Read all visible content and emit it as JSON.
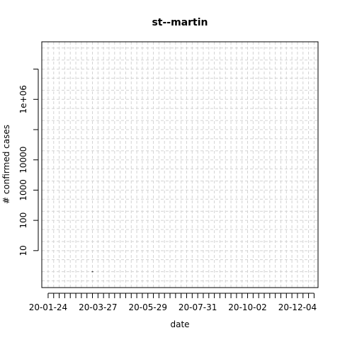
{
  "chart_data": {
    "type": "scatter",
    "title": "st--martin",
    "xlabel": "date",
    "ylabel": "# confirmed cases",
    "x_tick_labels": [
      "20-01-24",
      "20-03-27",
      "20-05-29",
      "20-07-31",
      "20-10-02",
      "20-12-04"
    ],
    "x_tick_dates": [
      "2020-01-24",
      "2020-03-27",
      "2020-05-29",
      "2020-07-31",
      "2020-10-02",
      "2020-12-04"
    ],
    "xlim": [
      "2020-01-16",
      "2020-12-30"
    ],
    "y_scale": "log10",
    "ylim": [
      0.6,
      80000000
    ],
    "y_ticks": [
      {
        "value": 10,
        "label": "10"
      },
      {
        "value": 100,
        "label": "100"
      },
      {
        "value": 1000,
        "label": "1000"
      },
      {
        "value": 10000,
        "label": "10000"
      },
      {
        "value": 100000,
        "label": ""
      },
      {
        "value": 1000000,
        "label": "1e+06"
      },
      {
        "value": 10000000,
        "label": ""
      }
    ],
    "grid": true,
    "series": [
      {
        "x": [
          "2020-03-20"
        ],
        "y": [
          2
        ]
      }
    ],
    "colors": {
      "points": "#000000",
      "grid": "#d3d3d3",
      "axis": "#000000"
    }
  }
}
